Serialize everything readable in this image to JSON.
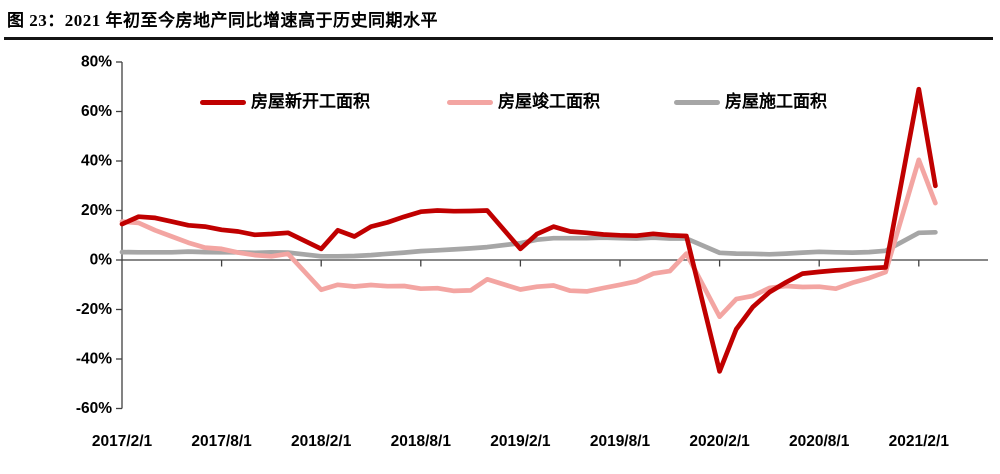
{
  "document": {
    "figure_title": "图 23：2021 年初至今房地产同比增速高于历史同期水平"
  },
  "colors": {
    "new_starts": "#C00000",
    "completions": "#F3A5A2",
    "under_construction": "#A6A6A6",
    "axis": "#404040",
    "title_rule": "#141414",
    "text": "#000000"
  },
  "chart_data": {
    "type": "line",
    "title": "",
    "xlabel": "",
    "ylabel": "",
    "y_unit": "%",
    "ylim": [
      -60,
      80
    ],
    "y_tick_step": 20,
    "y_tick_labels": [
      "80%",
      "60%",
      "40%",
      "20%",
      "0%",
      "-20%",
      "-40%",
      "-60%"
    ],
    "x_tick_labels": [
      "2017/2/1",
      "2017/8/1",
      "2018/2/1",
      "2018/8/1",
      "2019/2/1",
      "2019/8/1",
      "2020/2/1",
      "2020/8/1",
      "2021/2/1"
    ],
    "grid": false,
    "legend_position": "top",
    "x": [
      "2017/2",
      "2017/3",
      "2017/4",
      "2017/5",
      "2017/6",
      "2017/7",
      "2017/8",
      "2017/9",
      "2017/10",
      "2017/11",
      "2017/12",
      "2018/2",
      "2018/3",
      "2018/4",
      "2018/5",
      "2018/6",
      "2018/7",
      "2018/8",
      "2018/9",
      "2018/10",
      "2018/11",
      "2018/12",
      "2019/2",
      "2019/3",
      "2019/4",
      "2019/5",
      "2019/6",
      "2019/7",
      "2019/8",
      "2019/9",
      "2019/10",
      "2019/11",
      "2019/12",
      "2020/2",
      "2020/3",
      "2020/4",
      "2020/5",
      "2020/6",
      "2020/7",
      "2020/8",
      "2020/9",
      "2020/10",
      "2020/11",
      "2020/12",
      "2021/2",
      "2021/3"
    ],
    "series": [
      {
        "name": "房屋施工面积",
        "color": "#A6A6A6",
        "values": [
          3.2,
          3.1,
          3.1,
          3.1,
          3.4,
          3.2,
          3.1,
          3.1,
          2.9,
          3.1,
          3.0,
          1.5,
          1.5,
          1.6,
          2.0,
          2.5,
          3.0,
          3.6,
          3.9,
          4.3,
          4.7,
          5.2,
          6.8,
          8.2,
          8.8,
          8.8,
          8.8,
          9.0,
          8.8,
          8.7,
          9.0,
          8.7,
          8.7,
          2.9,
          2.6,
          2.5,
          2.3,
          2.6,
          3.0,
          3.3,
          3.1,
          3.0,
          3.2,
          3.7,
          11.0,
          11.2
        ]
      },
      {
        "name": "房屋竣工面积",
        "color": "#F3A5A2",
        "values": [
          15.5,
          15.0,
          12.0,
          9.5,
          7.0,
          5.0,
          4.5,
          3.0,
          2.0,
          1.5,
          2.5,
          -12.0,
          -10.0,
          -10.7,
          -10.1,
          -10.6,
          -10.5,
          -11.6,
          -11.4,
          -12.5,
          -12.3,
          -7.8,
          -11.9,
          -10.8,
          -10.3,
          -12.4,
          -12.7,
          -11.3,
          -10.0,
          -8.6,
          -5.5,
          -4.5,
          2.6,
          -22.9,
          -15.8,
          -14.5,
          -11.3,
          -10.5,
          -10.9,
          -10.8,
          -11.6,
          -9.2,
          -7.3,
          -4.9,
          40.5,
          23.0
        ]
      },
      {
        "name": "房屋新开工面积",
        "color": "#C00000",
        "values": [
          14.5,
          17.5,
          17.0,
          15.5,
          14.0,
          13.5,
          12.2,
          11.5,
          10.2,
          10.5,
          11.0,
          4.5,
          12.0,
          9.5,
          13.5,
          15.2,
          17.5,
          19.5,
          20.0,
          19.7,
          19.8,
          20.0,
          4.5,
          10.5,
          13.5,
          11.5,
          11.0,
          10.3,
          10.0,
          9.8,
          10.6,
          10.0,
          9.7,
          -45.0,
          -28.0,
          -19.0,
          -13.0,
          -9.0,
          -5.5,
          -4.8,
          -4.2,
          -3.8,
          -3.3,
          -3.0,
          69.0,
          30.0
        ]
      }
    ]
  },
  "legend": {
    "items": [
      {
        "label": "房屋新开工面积"
      },
      {
        "label": "房屋竣工面积"
      },
      {
        "label": "房屋施工面积"
      }
    ]
  }
}
